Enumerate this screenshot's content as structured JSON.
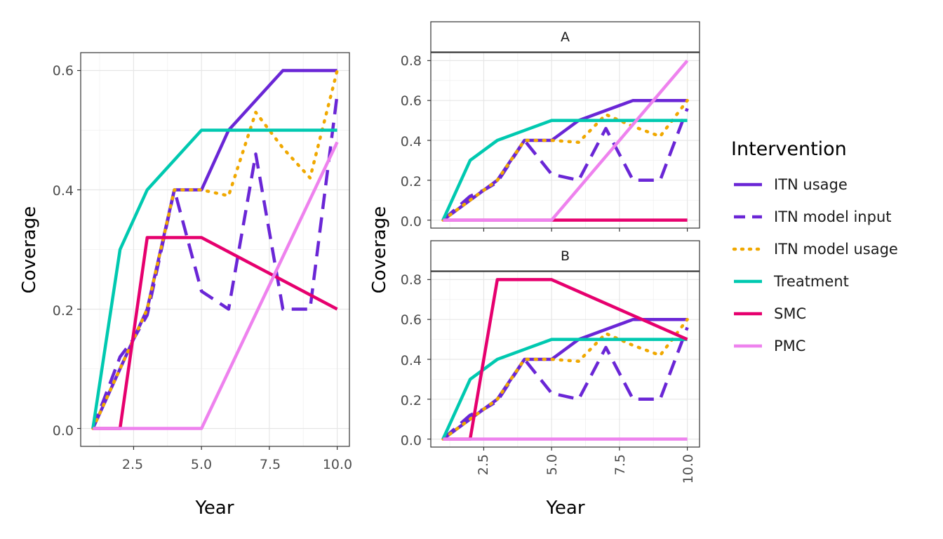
{
  "chart_data": [
    {
      "type": "line",
      "xlabel": "Year",
      "ylabel": "Coverage",
      "xlim": [
        0.55,
        10.45
      ],
      "ylim": [
        -0.03,
        0.63
      ],
      "x_ticks": [
        "2.5",
        "5.0",
        "7.5",
        "10.0"
      ],
      "y_ticks": [
        "0.0",
        "0.2",
        "0.4",
        "0.6"
      ],
      "grid": true,
      "series": [
        {
          "name": "ITN usage",
          "x": [
            1,
            2,
            3,
            4,
            5,
            6,
            7,
            8,
            9,
            10
          ],
          "y": [
            0,
            0.1,
            0.2,
            0.4,
            0.4,
            0.5,
            0.55,
            0.6,
            0.6,
            0.6
          ]
        },
        {
          "name": "ITN model input",
          "x": [
            1,
            2,
            2.5,
            3,
            4,
            5,
            6,
            7,
            8,
            9,
            10
          ],
          "y": [
            0,
            0.12,
            0.15,
            0.19,
            0.4,
            0.23,
            0.2,
            0.46,
            0.2,
            0.2,
            0.56
          ]
        },
        {
          "name": "ITN model usage",
          "x": [
            1,
            2,
            3,
            4,
            5,
            6,
            7,
            8,
            9,
            10
          ],
          "y": [
            0,
            0.1,
            0.2,
            0.4,
            0.4,
            0.39,
            0.53,
            0.47,
            0.42,
            0.6
          ]
        },
        {
          "name": "Treatment",
          "x": [
            1,
            2,
            3,
            4,
            5,
            6,
            7,
            8,
            9,
            10
          ],
          "y": [
            0,
            0.3,
            0.4,
            0.45,
            0.5,
            0.5,
            0.5,
            0.5,
            0.5,
            0.5
          ]
        },
        {
          "name": "SMC",
          "x": [
            1,
            2,
            3,
            4,
            5,
            10
          ],
          "y": [
            0,
            0,
            0.32,
            0.32,
            0.32,
            0.2
          ]
        },
        {
          "name": "PMC",
          "x": [
            1,
            5,
            10
          ],
          "y": [
            0,
            0,
            0.48
          ]
        }
      ]
    },
    {
      "type": "line",
      "facet": "A",
      "xlabel": "Year",
      "ylabel": "Coverage",
      "xlim": [
        0.55,
        10.45
      ],
      "ylim": [
        -0.04,
        0.84
      ],
      "x_ticks": [
        "2.5",
        "5.0",
        "7.5",
        "10.0"
      ],
      "y_ticks": [
        "0.0",
        "0.2",
        "0.4",
        "0.6",
        "0.8"
      ],
      "grid": true,
      "series": [
        {
          "name": "ITN usage",
          "x": [
            1,
            2,
            3,
            4,
            5,
            6,
            7,
            8,
            9,
            10
          ],
          "y": [
            0,
            0.1,
            0.2,
            0.4,
            0.4,
            0.5,
            0.55,
            0.6,
            0.6,
            0.6
          ]
        },
        {
          "name": "ITN model input",
          "x": [
            1,
            2,
            2.5,
            3,
            4,
            5,
            6,
            7,
            8,
            9,
            10
          ],
          "y": [
            0,
            0.12,
            0.15,
            0.19,
            0.4,
            0.23,
            0.2,
            0.46,
            0.2,
            0.2,
            0.56
          ]
        },
        {
          "name": "ITN model usage",
          "x": [
            1,
            2,
            3,
            4,
            5,
            6,
            7,
            8,
            9,
            10
          ],
          "y": [
            0,
            0.1,
            0.2,
            0.4,
            0.4,
            0.39,
            0.53,
            0.47,
            0.42,
            0.6
          ]
        },
        {
          "name": "Treatment",
          "x": [
            1,
            2,
            3,
            4,
            5,
            6,
            7,
            8,
            9,
            10
          ],
          "y": [
            0,
            0.3,
            0.4,
            0.45,
            0.5,
            0.5,
            0.5,
            0.5,
            0.5,
            0.5
          ]
        },
        {
          "name": "SMC",
          "x": [
            1,
            10
          ],
          "y": [
            0,
            0
          ]
        },
        {
          "name": "PMC",
          "x": [
            1,
            5,
            10
          ],
          "y": [
            0,
            0,
            0.8
          ]
        }
      ]
    },
    {
      "type": "line",
      "facet": "B",
      "xlabel": "Year",
      "ylabel": "Coverage",
      "xlim": [
        0.55,
        10.45
      ],
      "ylim": [
        -0.04,
        0.84
      ],
      "x_ticks": [
        "2.5",
        "5.0",
        "7.5",
        "10.0"
      ],
      "y_ticks": [
        "0.0",
        "0.2",
        "0.4",
        "0.6",
        "0.8"
      ],
      "grid": true,
      "series": [
        {
          "name": "ITN usage",
          "x": [
            1,
            2,
            3,
            4,
            5,
            6,
            7,
            8,
            9,
            10
          ],
          "y": [
            0,
            0.1,
            0.2,
            0.4,
            0.4,
            0.5,
            0.55,
            0.6,
            0.6,
            0.6
          ]
        },
        {
          "name": "ITN model input",
          "x": [
            1,
            2,
            2.5,
            3,
            4,
            5,
            6,
            7,
            8,
            9,
            10
          ],
          "y": [
            0,
            0.12,
            0.15,
            0.19,
            0.4,
            0.23,
            0.2,
            0.46,
            0.2,
            0.2,
            0.56
          ]
        },
        {
          "name": "ITN model usage",
          "x": [
            1,
            2,
            3,
            4,
            5,
            6,
            7,
            8,
            9,
            10
          ],
          "y": [
            0,
            0.1,
            0.2,
            0.4,
            0.4,
            0.39,
            0.53,
            0.47,
            0.42,
            0.6
          ]
        },
        {
          "name": "Treatment",
          "x": [
            1,
            2,
            3,
            4,
            5,
            6,
            7,
            8,
            9,
            10
          ],
          "y": [
            0,
            0.3,
            0.4,
            0.45,
            0.5,
            0.5,
            0.5,
            0.5,
            0.5,
            0.5
          ]
        },
        {
          "name": "SMC",
          "x": [
            1,
            2,
            3,
            4,
            5,
            10
          ],
          "y": [
            0,
            0,
            0.8,
            0.8,
            0.8,
            0.5
          ]
        },
        {
          "name": "PMC",
          "x": [
            1,
            10
          ],
          "y": [
            0,
            0
          ]
        }
      ]
    }
  ],
  "legend": {
    "title": "Intervention",
    "placement": "right",
    "items": [
      {
        "label": "ITN usage",
        "color": "#6a26d6",
        "dash": "solid"
      },
      {
        "label": "ITN model input",
        "color": "#6a26d6",
        "dash": "dashed"
      },
      {
        "label": "ITN model usage",
        "color": "#f0a800",
        "dash": "dotted"
      },
      {
        "label": "Treatment",
        "color": "#00c9b0",
        "dash": "solid"
      },
      {
        "label": "SMC",
        "color": "#e6006e",
        "dash": "solid"
      },
      {
        "label": "PMC",
        "color": "#ee82ee",
        "dash": "solid"
      }
    ]
  }
}
